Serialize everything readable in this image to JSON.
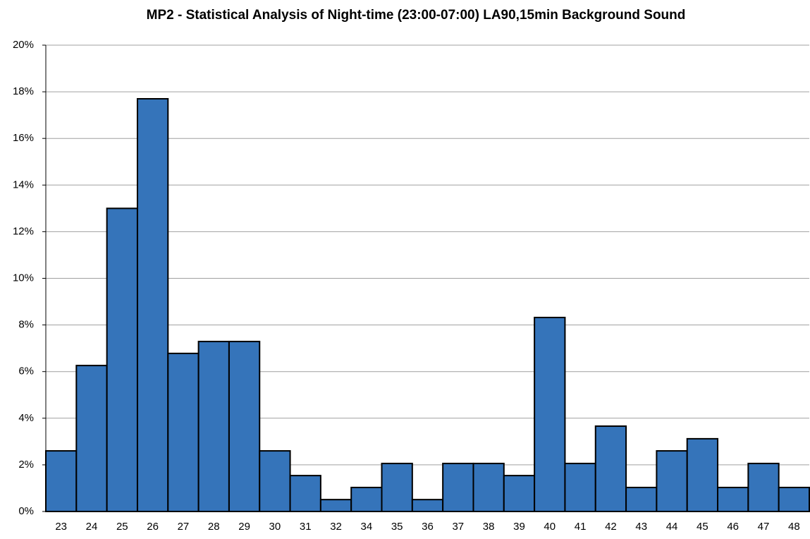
{
  "chart_data": {
    "type": "bar",
    "title": "MP2 - Statistical Analysis of Night-time (23:00-07:00) LA90,15min Background Sound",
    "categories": [
      "23",
      "24",
      "25",
      "26",
      "27",
      "28",
      "29",
      "30",
      "31",
      "32",
      "34",
      "35",
      "36",
      "37",
      "38",
      "39",
      "40",
      "41",
      "42",
      "43",
      "44",
      "45",
      "46",
      "47",
      "48"
    ],
    "values": [
      2.6,
      6.26,
      13.0,
      17.7,
      6.78,
      7.29,
      7.29,
      2.6,
      1.54,
      0.51,
      1.03,
      2.06,
      0.51,
      2.06,
      2.06,
      1.54,
      8.32,
      2.06,
      3.66,
      1.03,
      2.6,
      3.12,
      1.03,
      2.06,
      1.03
    ],
    "color": "#3574ba",
    "ylim": [
      0,
      20
    ],
    "yticks": [
      {
        "value": 0,
        "label": "0%"
      },
      {
        "value": 2,
        "label": "2%"
      },
      {
        "value": 4,
        "label": "4%"
      },
      {
        "value": 6,
        "label": "6%"
      },
      {
        "value": 8,
        "label": "8%"
      },
      {
        "value": 10,
        "label": "10%"
      },
      {
        "value": 12,
        "label": "12%"
      },
      {
        "value": 14,
        "label": "14%"
      },
      {
        "value": 16,
        "label": "16%"
      },
      {
        "value": 18,
        "label": "18%"
      },
      {
        "value": 20,
        "label": "20%"
      }
    ],
    "grid": true
  }
}
